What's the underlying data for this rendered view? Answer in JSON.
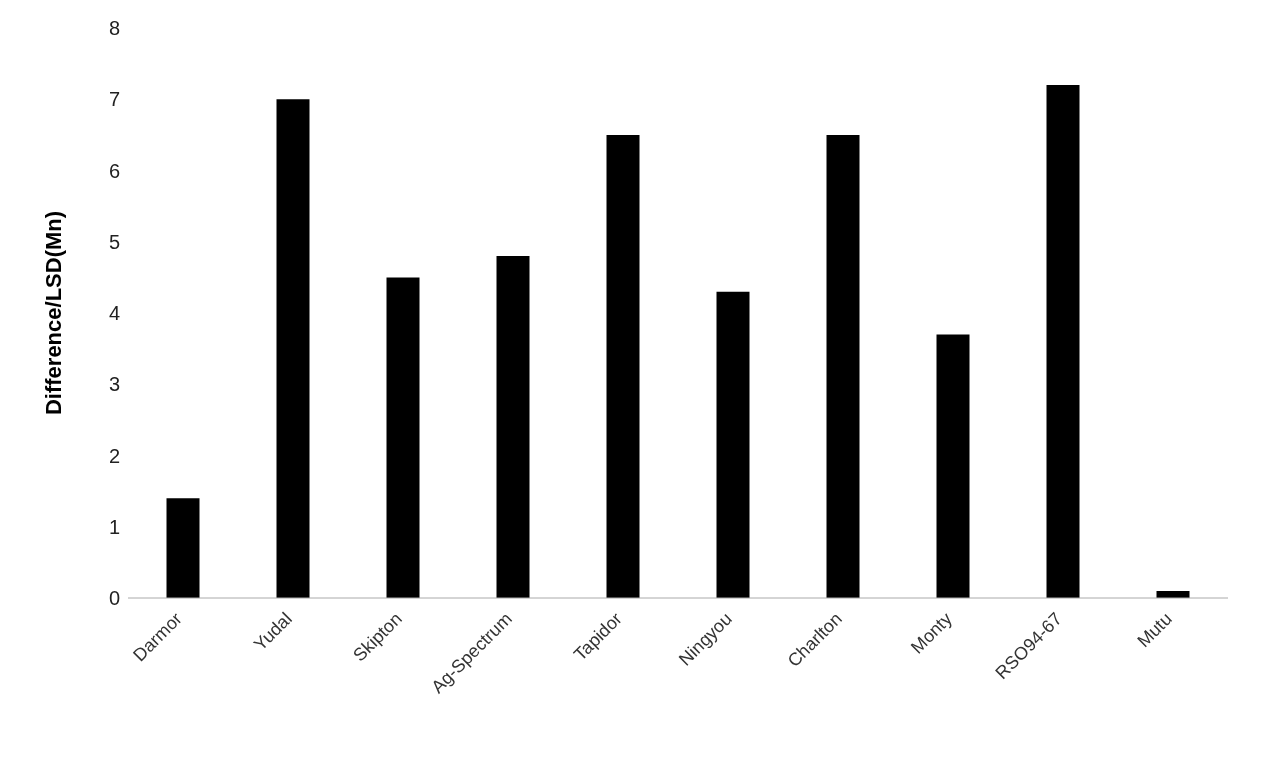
{
  "chart_data": {
    "type": "bar",
    "ylabel": "Difference/LSD(Mn)",
    "categories": [
      "Darmor",
      "Yudal",
      "Skipton",
      "Ag-Spectrum",
      "Tapidor",
      "Ningyou",
      "Charlton",
      "Monty",
      "RSO94-67",
      "Mutu"
    ],
    "values": [
      1.4,
      7.0,
      4.5,
      4.8,
      6.5,
      4.3,
      6.5,
      3.7,
      7.2,
      0.1
    ],
    "color": "#000000",
    "ylim": [
      0,
      8
    ],
    "yticks": [
      0,
      1,
      2,
      3,
      4,
      5,
      6,
      7,
      8
    ],
    "grid": false,
    "legend": false
  }
}
